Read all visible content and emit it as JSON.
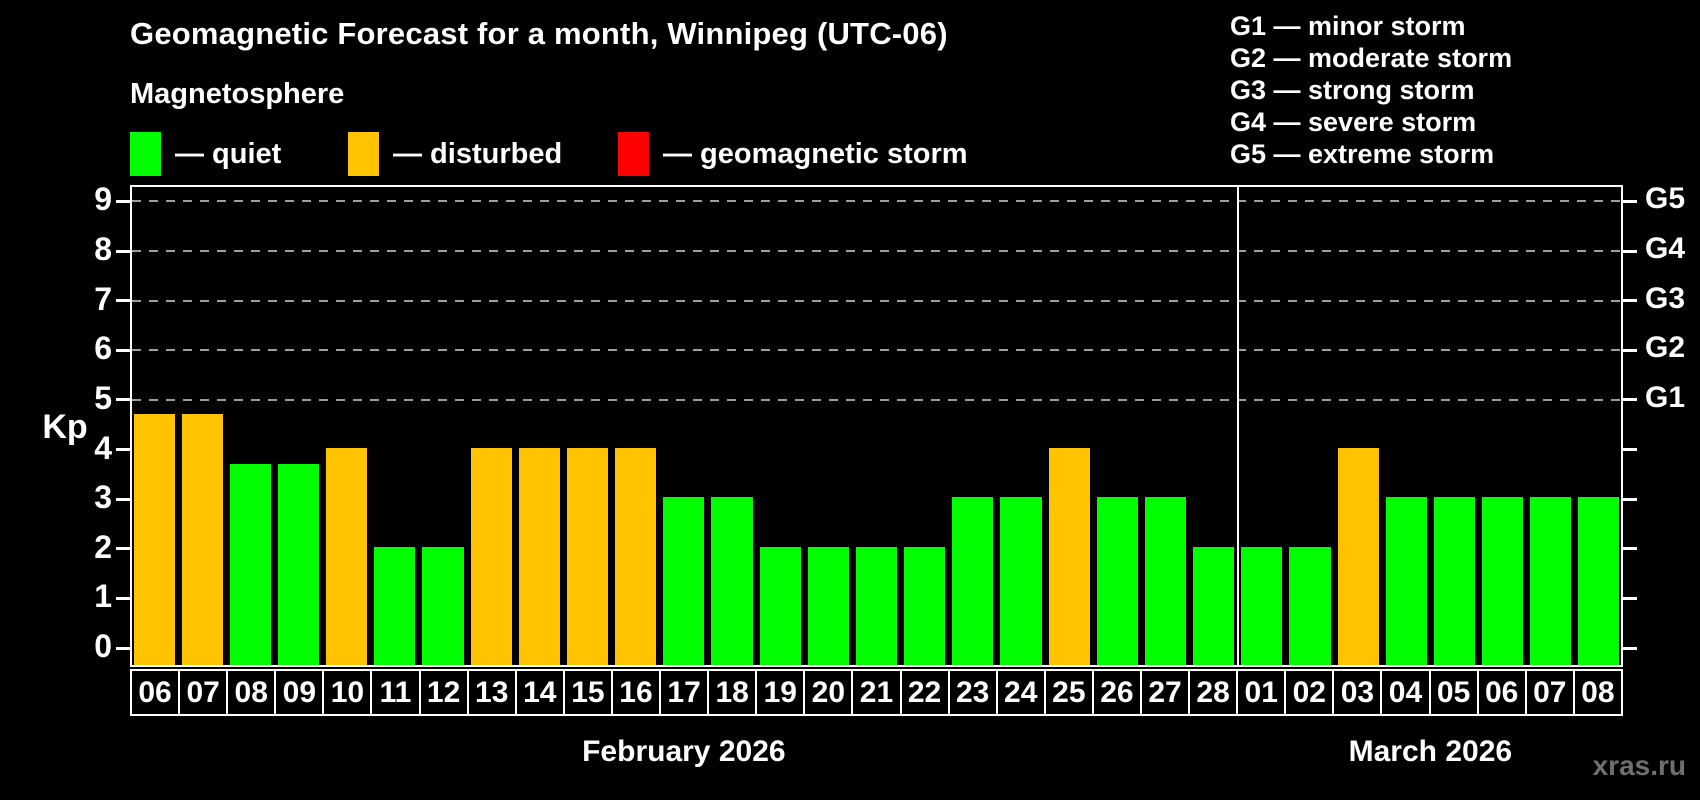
{
  "page": {
    "watermark": "xras.ru"
  },
  "header": {
    "title": "Geomagnetic Forecast for a month, Winnipeg (UTC-06)",
    "subtitle": "Magnetosphere",
    "legend": [
      {
        "key": "quiet",
        "label": "— quiet",
        "color": "#00ff00"
      },
      {
        "key": "disturbed",
        "label": "— disturbed",
        "color": "#ffc300"
      },
      {
        "key": "storm",
        "label": "— geomagnetic storm",
        "color": "#ff0000"
      }
    ],
    "g_scale_legend": [
      "G1 — minor storm",
      "G2 — moderate storm",
      "G3 — strong storm",
      "G4 — severe storm",
      "G5 — extreme storm"
    ]
  },
  "chart_data": {
    "type": "bar",
    "title": "Geomagnetic Forecast for a month, Winnipeg (UTC-06)",
    "subtitle": "Magnetosphere",
    "xlabel": "",
    "ylabel": "Kp",
    "ylim": [
      0,
      9.4
    ],
    "yticks": [
      0,
      1,
      2,
      3,
      4,
      5,
      6,
      7,
      8,
      9
    ],
    "gridlines_at": [
      5,
      6,
      7,
      8,
      9
    ],
    "grid": "dashed horizontal at Kp 5-9 only",
    "legend_position": "top-left",
    "right_axis_labels": [
      {
        "label": "G1",
        "kp": 5
      },
      {
        "label": "G2",
        "kp": 6
      },
      {
        "label": "G3",
        "kp": 7
      },
      {
        "label": "G4",
        "kp": 8
      },
      {
        "label": "G5",
        "kp": 9
      }
    ],
    "categories": [
      "06",
      "07",
      "08",
      "09",
      "10",
      "11",
      "12",
      "13",
      "14",
      "15",
      "16",
      "17",
      "18",
      "19",
      "20",
      "21",
      "22",
      "23",
      "24",
      "25",
      "26",
      "27",
      "28",
      "01",
      "02",
      "03",
      "04",
      "05",
      "06",
      "07",
      "08"
    ],
    "values": [
      4.67,
      4.67,
      3.67,
      3.67,
      4,
      2,
      2,
      4,
      4,
      4,
      4,
      3,
      3,
      2,
      2,
      2,
      2,
      3,
      3,
      4,
      3,
      3,
      2,
      2,
      2,
      4,
      3,
      3,
      3,
      3,
      3
    ],
    "statuses": [
      "disturbed",
      "disturbed",
      "quiet",
      "quiet",
      "disturbed",
      "quiet",
      "quiet",
      "disturbed",
      "disturbed",
      "disturbed",
      "disturbed",
      "quiet",
      "quiet",
      "quiet",
      "quiet",
      "quiet",
      "quiet",
      "quiet",
      "quiet",
      "disturbed",
      "quiet",
      "quiet",
      "quiet",
      "quiet",
      "quiet",
      "disturbed",
      "quiet",
      "quiet",
      "quiet",
      "quiet",
      "quiet"
    ],
    "colors": {
      "quiet": "#00ff00",
      "disturbed": "#ffc300",
      "storm": "#ff0000"
    },
    "months": [
      {
        "label": "February 2026",
        "days": 23
      },
      {
        "label": "March 2026",
        "days": 8
      }
    ]
  }
}
